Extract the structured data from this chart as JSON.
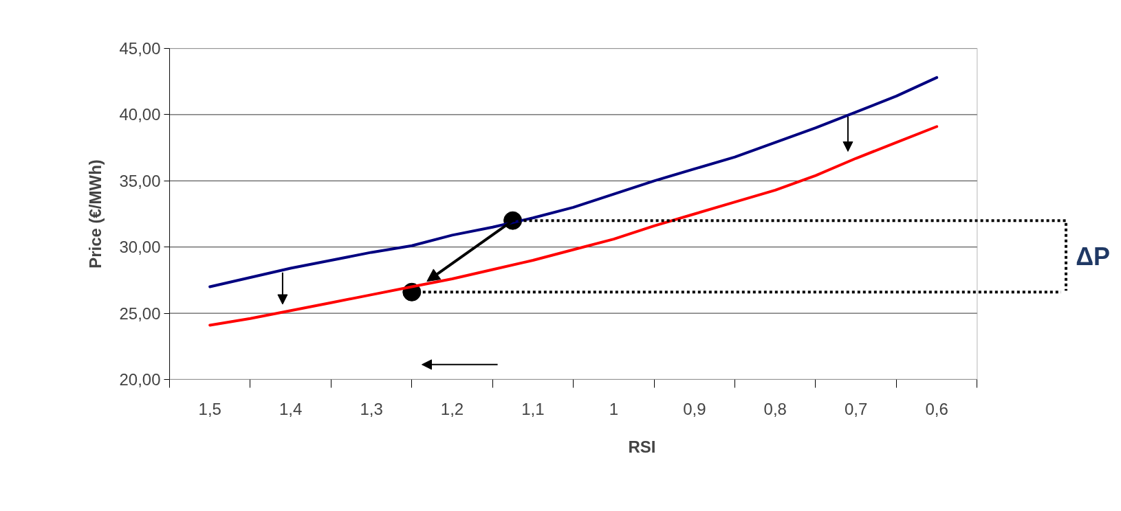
{
  "chart_data": {
    "type": "line",
    "xlabel": "RSI",
    "ylabel": "Price (€/MWh)",
    "x": [
      1.5,
      1.45,
      1.4,
      1.35,
      1.3,
      1.25,
      1.2,
      1.15,
      1.1,
      1.05,
      1.0,
      0.95,
      0.9,
      0.85,
      0.8,
      0.75,
      0.7,
      0.65,
      0.6
    ],
    "series": [
      {
        "color": "#000080",
        "values": [
          27.0,
          27.7,
          28.4,
          29.0,
          29.6,
          30.1,
          30.9,
          31.5,
          32.2,
          33.0,
          34.0,
          35.0,
          35.9,
          36.8,
          37.9,
          39.0,
          40.2,
          41.4,
          42.8
        ]
      },
      {
        "color": "#ff0000",
        "values": [
          24.1,
          24.6,
          25.2,
          25.8,
          26.4,
          27.0,
          27.6,
          28.3,
          29.0,
          29.8,
          30.6,
          31.6,
          32.5,
          33.4,
          34.3,
          35.4,
          36.7,
          37.9,
          39.1
        ]
      },
      {
        "type": "scatter",
        "color": "#000000",
        "marker": "circle",
        "x": [
          1.125,
          1.25
        ],
        "values": [
          32.0,
          26.6
        ]
      }
    ],
    "xlim": [
      1.55,
      0.55
    ],
    "xticks": [
      {
        "value": 1.5,
        "label": "1,5"
      },
      {
        "value": 1.4,
        "label": "1,4"
      },
      {
        "value": 1.3,
        "label": "1,3"
      },
      {
        "value": 1.2,
        "label": "1,2"
      },
      {
        "value": 1.1,
        "label": "1,1"
      },
      1,
      {
        "value": 0.9,
        "label": "0,9"
      },
      {
        "value": 0.8,
        "label": "0,8"
      },
      {
        "value": 0.7,
        "label": "0,7"
      },
      {
        "value": 0.6,
        "label": "0,6"
      }
    ],
    "ylim": [
      20,
      45
    ],
    "yticks": [
      {
        "value": 20,
        "label": "20,00"
      },
      {
        "value": 25,
        "label": "25,00"
      },
      {
        "value": 30,
        "label": "30,00"
      },
      {
        "value": 35,
        "label": "35,00"
      },
      {
        "value": 40,
        "label": "40,00"
      },
      {
        "value": 45,
        "label": "45,00"
      }
    ],
    "grid": "y",
    "marker": "none",
    "line_style": "solid",
    "ref_lines": [
      {
        "axis": "y",
        "value": 32.0,
        "label": "ΔP",
        "color": "#000000",
        "line_style": "dotted"
      },
      {
        "axis": "y",
        "value": 26.6,
        "color": "#000000",
        "line_style": "dotted"
      }
    ]
  }
}
